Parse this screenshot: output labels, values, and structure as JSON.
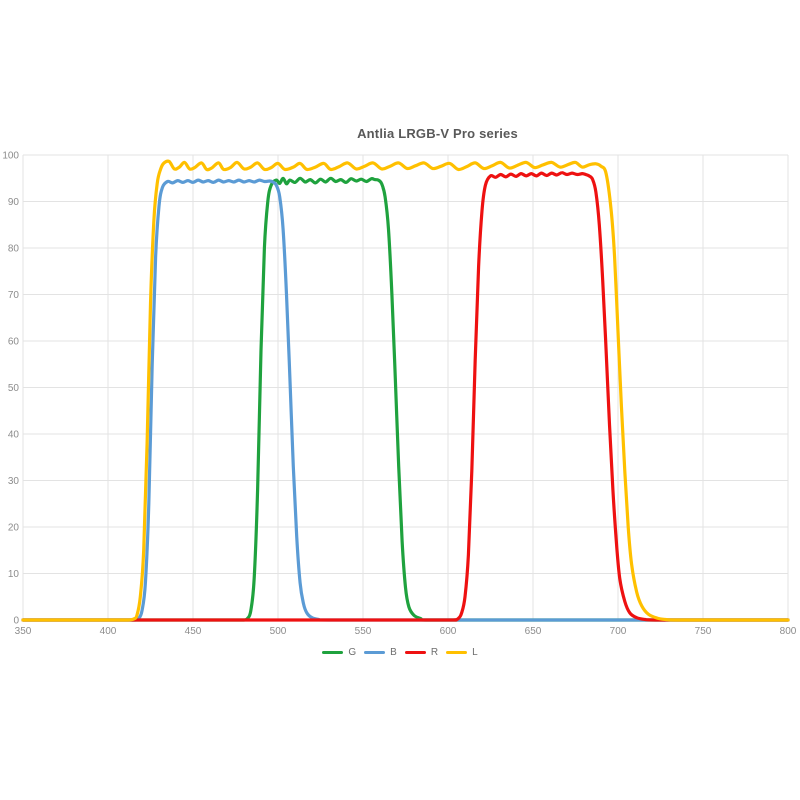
{
  "chart": {
    "grid_color": "#e3e3e3",
    "tick_color": "#8c8c8c",
    "title_color": "#595959",
    "background": "#ffffff"
  },
  "chart_data": {
    "type": "line",
    "title": "Antlia LRGB-V Pro series",
    "xlabel": "",
    "ylabel": "",
    "xlim": [
      350,
      800
    ],
    "ylim": [
      0,
      100
    ],
    "xticks": [
      350,
      400,
      450,
      500,
      550,
      600,
      650,
      700,
      750,
      800
    ],
    "yticks": [
      0,
      10,
      20,
      30,
      40,
      50,
      60,
      70,
      80,
      90,
      100
    ],
    "grid": true,
    "legend_position": "bottom",
    "series": [
      {
        "name": "G",
        "color": "#1fa23e",
        "points": [
          [
            350,
            0
          ],
          [
            450,
            0
          ],
          [
            475,
            0
          ],
          [
            480,
            0
          ],
          [
            482,
            0.3
          ],
          [
            484,
            2
          ],
          [
            486,
            9
          ],
          [
            488,
            28
          ],
          [
            490,
            58
          ],
          [
            492,
            80
          ],
          [
            494,
            90
          ],
          [
            496,
            93.5
          ],
          [
            499,
            94.6
          ],
          [
            501,
            93.9
          ],
          [
            503,
            95.0
          ],
          [
            505,
            93.8
          ],
          [
            507,
            94.6
          ],
          [
            510,
            94.1
          ],
          [
            513,
            95.0
          ],
          [
            516,
            94.2
          ],
          [
            519,
            94.7
          ],
          [
            522,
            94.0
          ],
          [
            525,
            94.8
          ],
          [
            528,
            94.2
          ],
          [
            531,
            95.0
          ],
          [
            534,
            94.3
          ],
          [
            537,
            94.7
          ],
          [
            540,
            94.1
          ],
          [
            543,
            94.9
          ],
          [
            546,
            94.4
          ],
          [
            549,
            94.8
          ],
          [
            552,
            94.3
          ],
          [
            555,
            94.9
          ],
          [
            557,
            94.7
          ],
          [
            559,
            94.6
          ],
          [
            561,
            93.8
          ],
          [
            563,
            91
          ],
          [
            565,
            84
          ],
          [
            567,
            70
          ],
          [
            569,
            52
          ],
          [
            571,
            33
          ],
          [
            573,
            17
          ],
          [
            575,
            7
          ],
          [
            577,
            2.8
          ],
          [
            580,
            1
          ],
          [
            584,
            0.3
          ],
          [
            589,
            0
          ],
          [
            650,
            0
          ],
          [
            800,
            0
          ]
        ]
      },
      {
        "name": "B",
        "color": "#5b9bd5",
        "points": [
          [
            350,
            0
          ],
          [
            400,
            0
          ],
          [
            412,
            0
          ],
          [
            416,
            0
          ],
          [
            418,
            0.3
          ],
          [
            420,
            2
          ],
          [
            422,
            8
          ],
          [
            424,
            25
          ],
          [
            426,
            55
          ],
          [
            428,
            78
          ],
          [
            430,
            89
          ],
          [
            432,
            93
          ],
          [
            435,
            94.3
          ],
          [
            438,
            94.0
          ],
          [
            441,
            94.5
          ],
          [
            444,
            94.1
          ],
          [
            447,
            94.5
          ],
          [
            450,
            94.1
          ],
          [
            453,
            94.6
          ],
          [
            456,
            94.2
          ],
          [
            459,
            94.5
          ],
          [
            462,
            94.1
          ],
          [
            465,
            94.6
          ],
          [
            468,
            94.2
          ],
          [
            471,
            94.5
          ],
          [
            474,
            94.2
          ],
          [
            477,
            94.6
          ],
          [
            480,
            94.2
          ],
          [
            483,
            94.5
          ],
          [
            486,
            94.2
          ],
          [
            489,
            94.6
          ],
          [
            492,
            94.3
          ],
          [
            495,
            94.4
          ],
          [
            497,
            94.2
          ],
          [
            499,
            93.5
          ],
          [
            501,
            91
          ],
          [
            503,
            84
          ],
          [
            505,
            70
          ],
          [
            507,
            52
          ],
          [
            509,
            33
          ],
          [
            511,
            18
          ],
          [
            513,
            8
          ],
          [
            515,
            3.5
          ],
          [
            517,
            1.5
          ],
          [
            520,
            0.5
          ],
          [
            524,
            0.1
          ],
          [
            530,
            0
          ],
          [
            600,
            0
          ],
          [
            700,
            0
          ],
          [
            800,
            0
          ]
        ]
      },
      {
        "name": "R",
        "color": "#ee1111",
        "points": [
          [
            350,
            0
          ],
          [
            500,
            0
          ],
          [
            595,
            0
          ],
          [
            603,
            0
          ],
          [
            606,
            0.3
          ],
          [
            608,
            1.5
          ],
          [
            610,
            5
          ],
          [
            612,
            14
          ],
          [
            614,
            32
          ],
          [
            616,
            56
          ],
          [
            618,
            76
          ],
          [
            620,
            88
          ],
          [
            622,
            93.5
          ],
          [
            625,
            95.5
          ],
          [
            628,
            95.2
          ],
          [
            631,
            95.8
          ],
          [
            634,
            95.3
          ],
          [
            637,
            95.9
          ],
          [
            640,
            95.4
          ],
          [
            643,
            96.0
          ],
          [
            646,
            95.5
          ],
          [
            649,
            96.0
          ],
          [
            652,
            95.5
          ],
          [
            655,
            96.1
          ],
          [
            658,
            95.6
          ],
          [
            661,
            96.1
          ],
          [
            664,
            95.7
          ],
          [
            667,
            96.2
          ],
          [
            670,
            95.8
          ],
          [
            673,
            96.1
          ],
          [
            676,
            95.8
          ],
          [
            679,
            96.0
          ],
          [
            681,
            95.8
          ],
          [
            683,
            95.5
          ],
          [
            685,
            94.8
          ],
          [
            687,
            92
          ],
          [
            689,
            85
          ],
          [
            691,
            73
          ],
          [
            693,
            58
          ],
          [
            695,
            42
          ],
          [
            697,
            28
          ],
          [
            699,
            17
          ],
          [
            701,
            9
          ],
          [
            704,
            4
          ],
          [
            707,
            1.5
          ],
          [
            711,
            0.5
          ],
          [
            716,
            0.1
          ],
          [
            722,
            0
          ],
          [
            760,
            0
          ],
          [
            800,
            0
          ]
        ]
      },
      {
        "name": "L",
        "color": "#ffc000",
        "points": [
          [
            350,
            0
          ],
          [
            380,
            0
          ],
          [
            405,
            0
          ],
          [
            412,
            0
          ],
          [
            415,
            0.2
          ],
          [
            417,
            1
          ],
          [
            419,
            5
          ],
          [
            421,
            15
          ],
          [
            423,
            38
          ],
          [
            425,
            68
          ],
          [
            427,
            86
          ],
          [
            429,
            94
          ],
          [
            431,
            97
          ],
          [
            433,
            98.3
          ],
          [
            436,
            98.6
          ],
          [
            439,
            97.0
          ],
          [
            442,
            97.4
          ],
          [
            445,
            98.4
          ],
          [
            448,
            97.0
          ],
          [
            451,
            97.3
          ],
          [
            455,
            98.3
          ],
          [
            458,
            96.9
          ],
          [
            461,
            97.2
          ],
          [
            465,
            98.3
          ],
          [
            468,
            96.9
          ],
          [
            472,
            97.3
          ],
          [
            476,
            98.4
          ],
          [
            480,
            97.0
          ],
          [
            484,
            97.4
          ],
          [
            488,
            98.3
          ],
          [
            492,
            96.9
          ],
          [
            496,
            97.3
          ],
          [
            500,
            98.2
          ],
          [
            504,
            96.9
          ],
          [
            509,
            97.4
          ],
          [
            513,
            98.2
          ],
          [
            517,
            96.9
          ],
          [
            522,
            97.4
          ],
          [
            527,
            98.2
          ],
          [
            531,
            96.9
          ],
          [
            536,
            97.5
          ],
          [
            541,
            98.3
          ],
          [
            546,
            97.0
          ],
          [
            551,
            97.6
          ],
          [
            556,
            98.3
          ],
          [
            561,
            97.0
          ],
          [
            566,
            97.6
          ],
          [
            571,
            98.3
          ],
          [
            576,
            97.1
          ],
          [
            581,
            97.7
          ],
          [
            586,
            98.3
          ],
          [
            591,
            97.1
          ],
          [
            596,
            97.6
          ],
          [
            601,
            98.2
          ],
          [
            606,
            96.9
          ],
          [
            611,
            97.5
          ],
          [
            616,
            98.3
          ],
          [
            621,
            97.1
          ],
          [
            626,
            97.7
          ],
          [
            631,
            98.4
          ],
          [
            636,
            97.2
          ],
          [
            641,
            97.8
          ],
          [
            646,
            98.4
          ],
          [
            651,
            97.3
          ],
          [
            656,
            97.9
          ],
          [
            661,
            98.4
          ],
          [
            666,
            97.4
          ],
          [
            671,
            98.0
          ],
          [
            675,
            98.4
          ],
          [
            679,
            97.4
          ],
          [
            683,
            97.9
          ],
          [
            687,
            98.1
          ],
          [
            690,
            97.6
          ],
          [
            693,
            96
          ],
          [
            696,
            88
          ],
          [
            698,
            78
          ],
          [
            700,
            62
          ],
          [
            702,
            46
          ],
          [
            704,
            32
          ],
          [
            706,
            20
          ],
          [
            708,
            12
          ],
          [
            711,
            6
          ],
          [
            714,
            3
          ],
          [
            718,
            1.2
          ],
          [
            723,
            0.4
          ],
          [
            728,
            0.1
          ],
          [
            734,
            0
          ],
          [
            760,
            0
          ],
          [
            800,
            0
          ]
        ]
      }
    ]
  }
}
